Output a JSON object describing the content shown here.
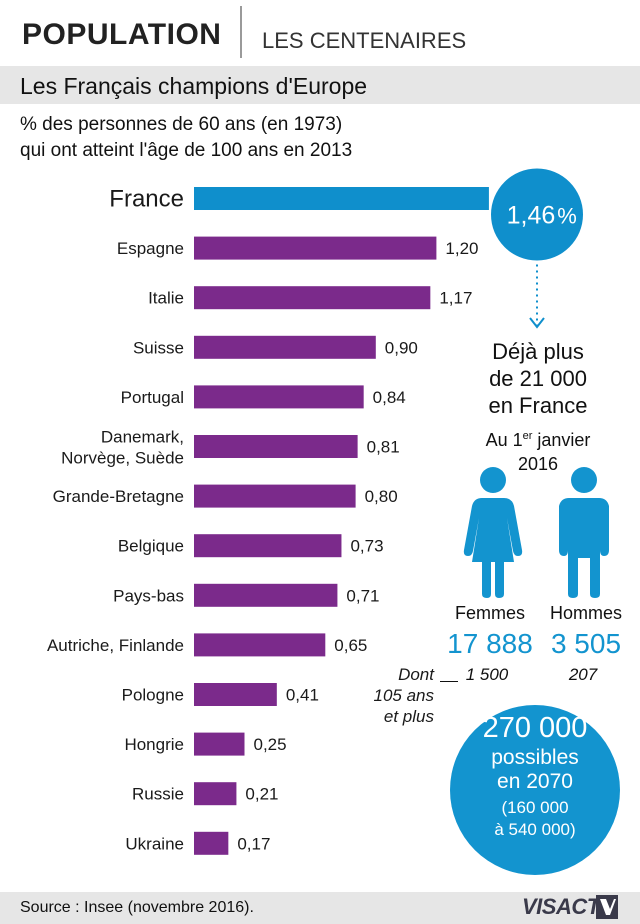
{
  "header": {
    "title": "POPULATION",
    "section": "LES CENTENAIRES"
  },
  "subtitle": "Les Français champions d'Europe",
  "description": {
    "line1": "% des personnes de 60 ans (en 1973)",
    "line2": "qui ont atteint l'âge de 100 ans en 2013"
  },
  "colors": {
    "highlight": "#0f8fcc",
    "bar": "#7b2a8b",
    "band": "#e6e6e6",
    "person": "#1394cf"
  },
  "chart_data": {
    "type": "bar",
    "orientation": "horizontal",
    "categories": [
      "France",
      "Espagne",
      "Italie",
      "Suisse",
      "Portugal",
      "Danemark,\nNorvège, Suède",
      "Grande-Bretagne",
      "Belgique",
      "Pays-bas",
      "Autriche, Finlande",
      "Pologne",
      "Hongrie",
      "Russie",
      "Ukraine"
    ],
    "values": [
      1.46,
      1.2,
      1.17,
      0.9,
      0.84,
      0.81,
      0.8,
      0.73,
      0.71,
      0.65,
      0.41,
      0.25,
      0.21,
      0.17
    ],
    "value_labels": [
      "1,46",
      "1,20",
      "1,17",
      "0,90",
      "0,84",
      "0,81",
      "0,80",
      "0,73",
      "0,71",
      "0,65",
      "0,41",
      "0,25",
      "0,21",
      "0,17"
    ],
    "highlight_unit": "%",
    "highlight_index": 0
  },
  "side": {
    "headline1": "Déjà plus",
    "headline2": "de 21 000",
    "headline3": "en France",
    "date_prefix": "Au 1",
    "date_sup": "er",
    "date_suffix": " janvier",
    "date_year": "2016",
    "women_label": "Femmes",
    "men_label": "Hommes",
    "women_count": "17 888",
    "men_count": "3 505",
    "dont1": "Dont",
    "dont2": "105 ans",
    "dont3": "et plus",
    "women_105": "1 500",
    "men_105": "207",
    "proj1": "270 000",
    "proj2": "possibles",
    "proj3": "en 2070",
    "proj4": "(160 000",
    "proj5": "à 540 000)"
  },
  "footer": {
    "source": "Source : Insee (novembre 2016).",
    "logo": "VISACTU"
  }
}
